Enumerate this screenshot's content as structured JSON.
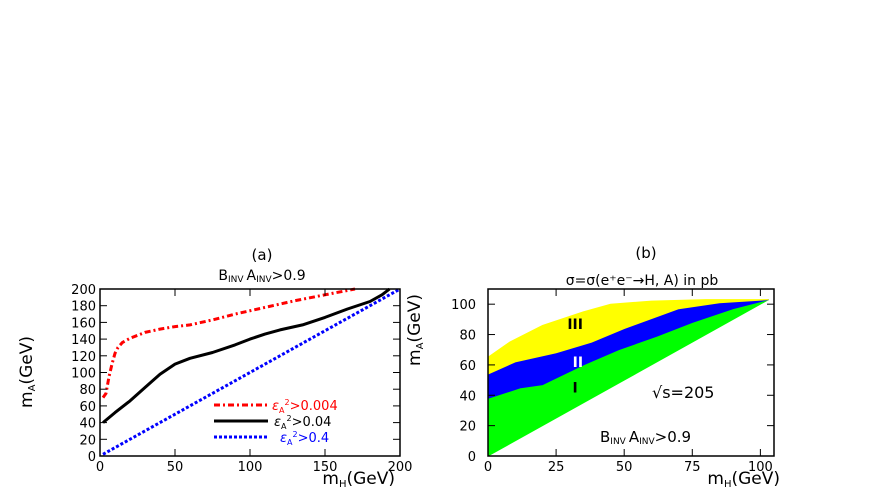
{
  "chart_data": [
    {
      "panel": "(a)",
      "type": "line",
      "title": "B_INV A_INV > 0.9",
      "title_parts": {
        "main_a": "B",
        "sub_a": "INV",
        "main_b": "A",
        "sub_b": "INV",
        "rest": ">0.9"
      },
      "xlabel": "m_H(GeV)",
      "xlabel_parts": {
        "main": "m",
        "sub": "H",
        "rest": "(GeV)"
      },
      "ylabel": "m_A(GeV)",
      "ylabel_parts": {
        "main": "m",
        "sub": "A",
        "rest": "(GeV)"
      },
      "xlim": [
        0,
        200
      ],
      "ylim": [
        0,
        200
      ],
      "xticks": [
        0,
        50,
        100,
        150,
        200
      ],
      "yticks": [
        0,
        20,
        40,
        60,
        80,
        100,
        120,
        140,
        160,
        180,
        200
      ],
      "series": [
        {
          "name": "εA² > 0.004",
          "name_parts": {
            "main": "ε",
            "sub": "A",
            "sup": "2",
            "rest": ">0.004"
          },
          "color": "#ff0000",
          "style": "dash-dot",
          "x": [
            2,
            4,
            6,
            8,
            10,
            12,
            15,
            20,
            30,
            40,
            50,
            60,
            75,
            90,
            110,
            130,
            150,
            170
          ],
          "y": [
            70,
            75,
            95,
            110,
            123,
            130,
            136,
            141,
            148,
            152,
            155,
            157,
            163,
            170,
            178,
            186,
            193,
            200
          ]
        },
        {
          "name": "εA² > 0.04",
          "name_parts": {
            "main": "ε",
            "sub": "A",
            "sup": "2",
            "rest": ">0.04"
          },
          "color": "#000000",
          "style": "solid",
          "x": [
            2,
            10,
            20,
            30,
            40,
            50,
            60,
            75,
            90,
            100,
            110,
            120,
            135,
            150,
            165,
            180,
            188,
            193
          ],
          "y": [
            40,
            52,
            66,
            82,
            98,
            110,
            117,
            124,
            133,
            140,
            146,
            151,
            157,
            166,
            176,
            185,
            193,
            200
          ]
        },
        {
          "name": "εA² > 0.4",
          "name_parts": {
            "main": "ε",
            "sub": "A",
            "sup": "2",
            "rest": ">0.4"
          },
          "color": "#0000ff",
          "style": "dotted",
          "x": [
            2,
            200
          ],
          "y": [
            2,
            200
          ]
        }
      ],
      "legend": "bottom-right",
      "grid": false
    },
    {
      "panel": "(b)",
      "type": "area",
      "title": "σ=σ(e⁺e⁻→H, A) in pb",
      "xlabel": "m_H(GeV)",
      "xlabel_parts": {
        "main": "m",
        "sub": "H",
        "rest": "(GeV)"
      },
      "ylabel": "m_A(GeV)",
      "ylabel_parts": {
        "main": "m",
        "sub": "A",
        "rest": "(GeV)"
      },
      "xlim": [
        0,
        105
      ],
      "ylim": [
        0,
        110
      ],
      "xticks": [
        0,
        25,
        50,
        75,
        100
      ],
      "yticks": [
        0,
        20,
        40,
        60,
        80,
        100
      ],
      "regions": [
        {
          "name": "I",
          "color": "#00ff00",
          "boundary": [
            [
              0,
              0
            ],
            [
              103,
              103
            ],
            [
              90,
              97
            ],
            [
              75,
              88
            ],
            [
              62,
              79
            ],
            [
              48,
              70
            ],
            [
              35,
              60
            ],
            [
              20,
              47
            ],
            [
              12,
              45
            ],
            [
              0,
              38
            ]
          ]
        },
        {
          "name": "II",
          "color": "#0000ff",
          "boundary": [
            [
              0,
              38
            ],
            [
              12,
              45
            ],
            [
              20,
              47
            ],
            [
              35,
              60
            ],
            [
              48,
              70
            ],
            [
              62,
              79
            ],
            [
              75,
              88
            ],
            [
              90,
              97
            ],
            [
              103,
              103
            ],
            [
              85,
              101
            ],
            [
              70,
              97
            ],
            [
              50,
              84
            ],
            [
              38,
              75
            ],
            [
              25,
              68
            ],
            [
              10,
              62
            ],
            [
              0,
              54
            ]
          ]
        },
        {
          "name": "III",
          "color": "#ffff00",
          "boundary": [
            [
              0,
              54
            ],
            [
              10,
              62
            ],
            [
              25,
              68
            ],
            [
              38,
              75
            ],
            [
              50,
              84
            ],
            [
              70,
              97
            ],
            [
              85,
              101
            ],
            [
              103,
              103
            ],
            [
              80,
              103
            ],
            [
              60,
              102
            ],
            [
              45,
              100
            ],
            [
              35,
              95
            ],
            [
              20,
              86
            ],
            [
              8,
              75
            ],
            [
              0,
              65
            ]
          ]
        }
      ],
      "region_labels": [
        {
          "text": "III",
          "x": 32,
          "y": 87
        },
        {
          "text": "II",
          "x": 33,
          "y": 62
        },
        {
          "text": "I",
          "x": 32,
          "y": 45
        }
      ],
      "annotations": {
        "sqrt_s": "√s=205",
        "cut_parts": {
          "main_a": "B",
          "sub_a": "INV",
          "main_b": "A",
          "sub_b": "INV",
          "rest": ">0.9"
        }
      }
    }
  ]
}
